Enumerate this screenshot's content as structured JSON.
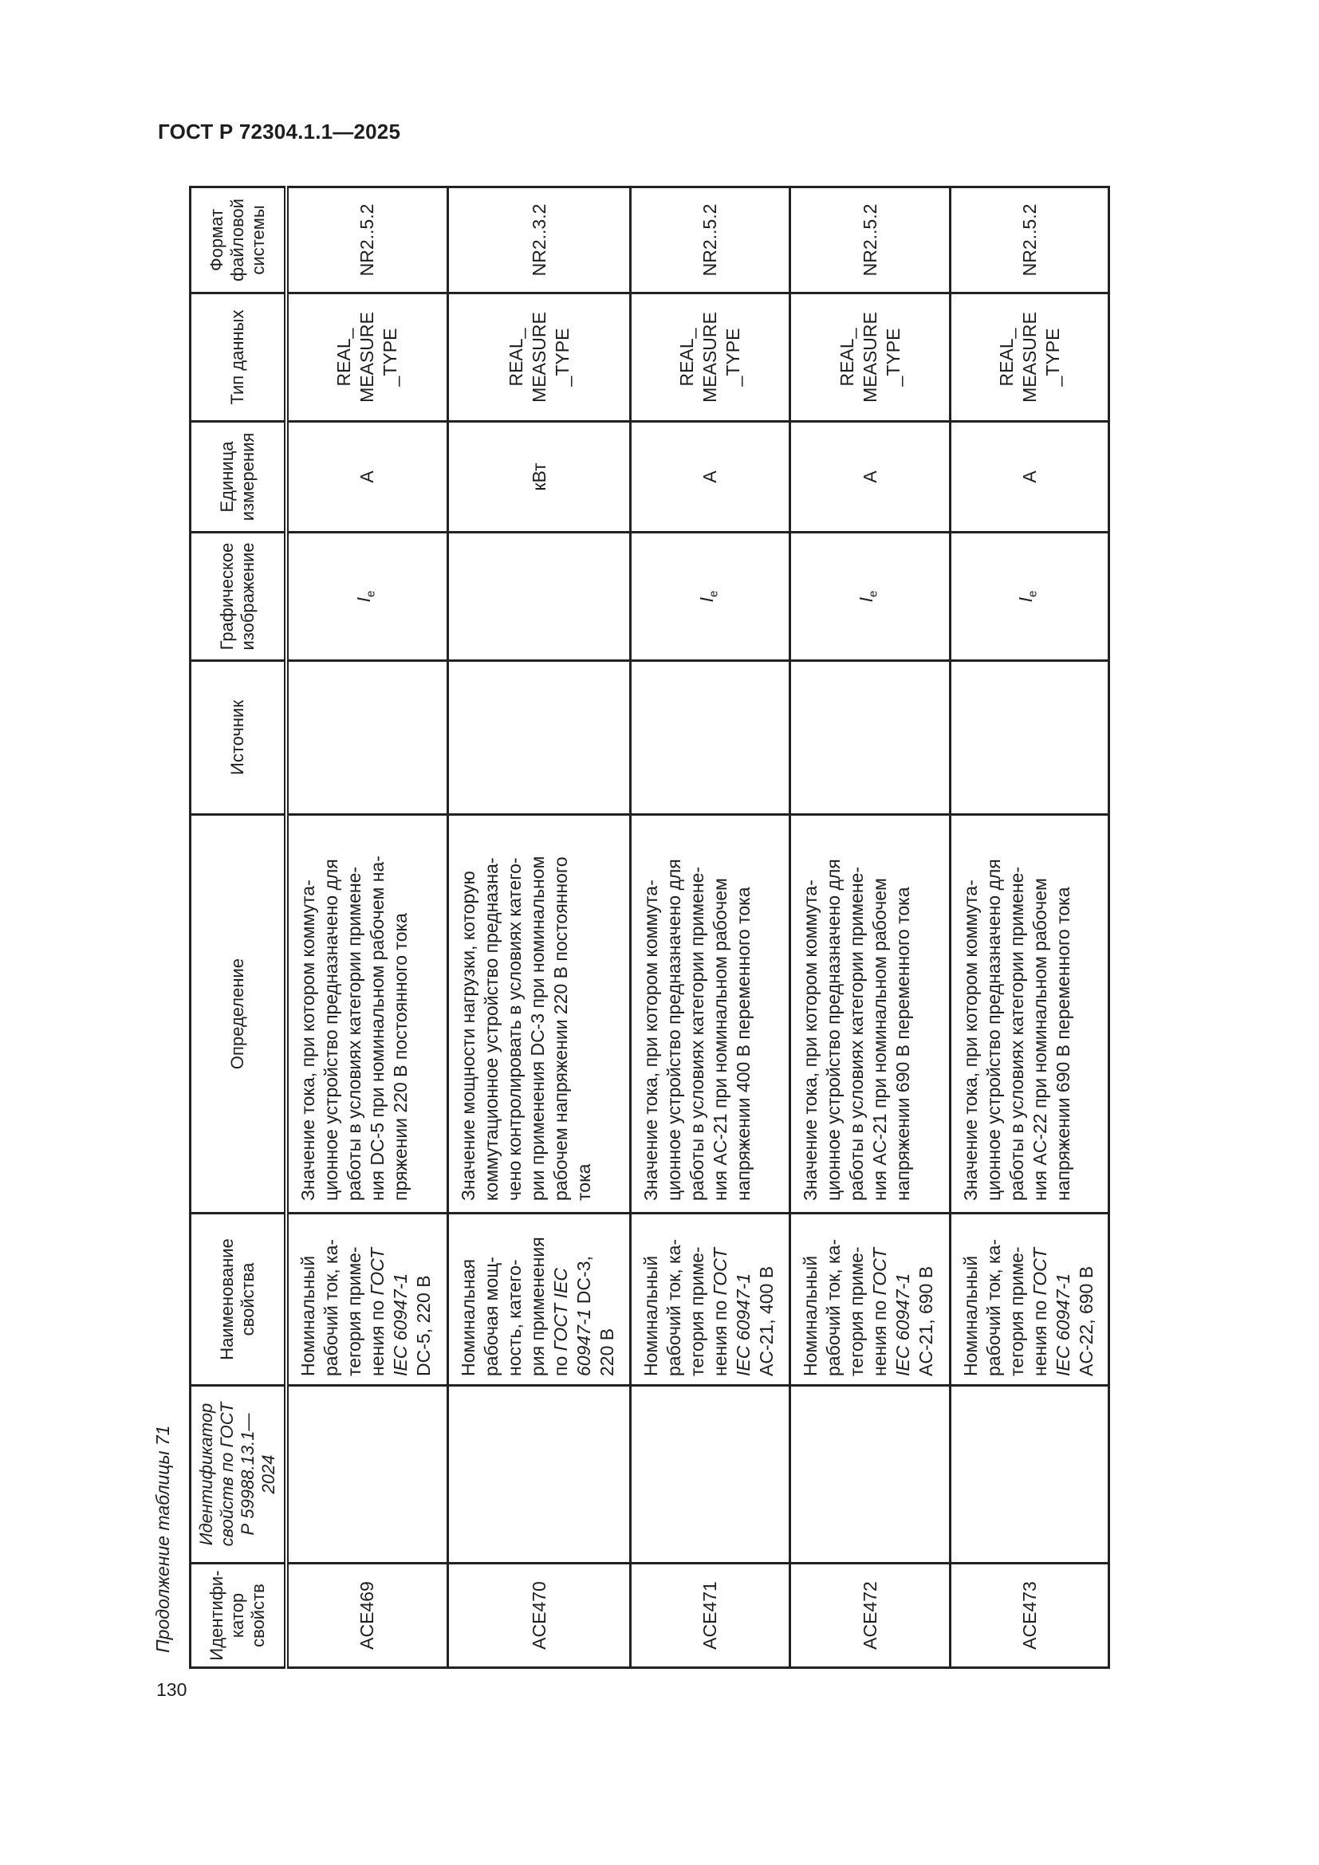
{
  "document": {
    "header": "ГОСТ Р 72304.1.1—2025",
    "page_number": "130",
    "caption": "Продолжение таблицы 71"
  },
  "table": {
    "headers": {
      "id": "Идентифи-\nкатор\nсвойств",
      "id2": "Идентификатор\nсвойств по ГОСТ\nР 59988.13.1—\n2024",
      "name": "Наименование\nсвойства",
      "definition": "Определение",
      "source": "Источник",
      "graphic": "Графическое\nизображение",
      "unit": "Единица\nизмерения",
      "datatype": "Тип данных",
      "format": "Формат\nфайловой\nсистемы"
    },
    "rows": [
      {
        "id": "ACE469",
        "id2": "",
        "name_pre": "Номинальный\nрабочий ток, ка-\nтегория приме-\nнения по ",
        "name_it": "ГОСТ\nIEC 60947-1",
        "name_post": "\nDC-5, 220 В",
        "definition": "Значение тока, при котором коммута-\nционное устройство предназначено для\nработы в условиях категории примене-\nния DC-5 при номинальном рабочем на-\nпряжении 220 В постоянного тока",
        "source": "",
        "graphic_base": "I",
        "graphic_sub": "e",
        "unit": "A",
        "datatype": "REAL_\nMEASURE\n_TYPE",
        "format": "NR2..5.2"
      },
      {
        "id": "ACE470",
        "id2": "",
        "name_pre": "Номинальная\nрабочая мощ-\nность, катего-\nрия применения\nпо ",
        "name_it": "ГОСТ IEC\n60947-1",
        "name_post": " DC-3,\n220 В",
        "definition": "Значение мощности нагрузки, которую\nкоммутационное устройство предназна-\nчено контролировать в условиях катего-\nрии применения DC-3 при номинальном\nрабочем напряжении 220 В постоянного\nтока",
        "source": "",
        "graphic_base": "",
        "graphic_sub": "",
        "unit": "кВт",
        "datatype": "REAL_\nMEASURE\n_TYPE",
        "format": "NR2..3.2"
      },
      {
        "id": "ACE471",
        "id2": "",
        "name_pre": "Номинальный\nрабочий ток, ка-\nтегория приме-\nнения по ",
        "name_it": "ГОСТ\nIEC 60947-1",
        "name_post": "\nAC-21, 400 В",
        "definition": "Значение тока, при котором коммута-\nционное устройство предназначено для\nработы в условиях категории примене-\nния AC-21 при номинальном рабочем\nнапряжении 400 В переменного тока",
        "source": "",
        "graphic_base": "I",
        "graphic_sub": "e",
        "unit": "A",
        "datatype": "REAL_\nMEASURE\n_TYPE",
        "format": "NR2..5.2"
      },
      {
        "id": "ACE472",
        "id2": "",
        "name_pre": "Номинальный\nрабочий ток, ка-\nтегория приме-\nнения по ",
        "name_it": "ГОСТ\nIEC 60947-1",
        "name_post": "\nAC-21, 690 В",
        "definition": "Значение тока, при котором коммута-\nционное устройство предназначено для\nработы в условиях категории примене-\nния AC-21 при номинальном рабочем\nнапряжении 690 В переменного тока",
        "source": "",
        "graphic_base": "I",
        "graphic_sub": "e",
        "unit": "A",
        "datatype": "REAL_\nMEASURE\n_TYPE",
        "format": "NR2..5.2"
      },
      {
        "id": "ACE473",
        "id2": "",
        "name_pre": "Номинальный\nрабочий ток, ка-\nтегория приме-\nнения по ",
        "name_it": "ГОСТ\nIEC 60947-1",
        "name_post": "\nAC-22, 690 В",
        "definition": "Значение тока, при котором коммута-\nционное устройство предназначено для\nработы в условиях категории примене-\nния AC-22 при номинальном рабочем\nнапряжении 690 В переменного тока",
        "source": "",
        "graphic_base": "I",
        "graphic_sub": "e",
        "unit": "A",
        "datatype": "REAL_\nMEASURE\n_TYPE",
        "format": "NR2..5.2"
      }
    ]
  }
}
